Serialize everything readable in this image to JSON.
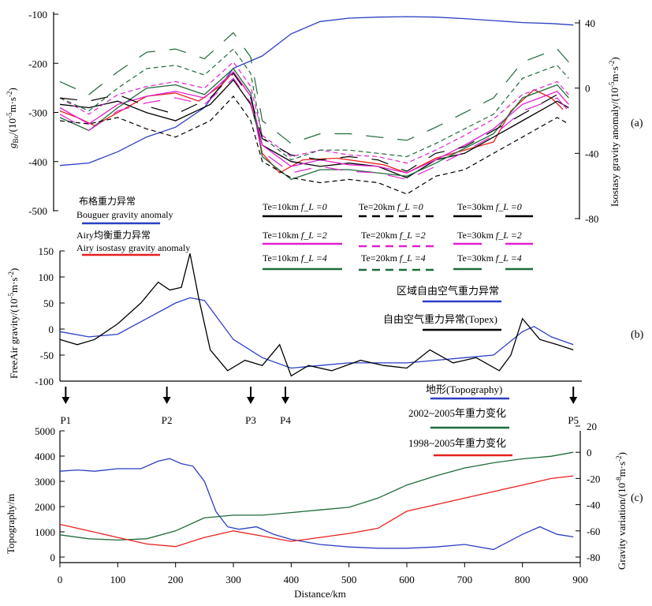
{
  "chart_data": [
    {
      "panel_label": "(a)",
      "type": "line",
      "ylabel_left": "g_Bo/(10^-5 m·s^-2)",
      "ylabel_left_parts": {
        "main": "g",
        "sub": "Bo",
        "unit": "/(10",
        "exp1": "-5",
        "mid": "m·s",
        "exp2": "-2",
        "end": ")"
      },
      "ylabel_right": "Isostasy gravity anomaly/(10^-5 m·s^-2)",
      "ylabel_right_parts": {
        "main": "Isostasy gravity anomaly/(10",
        "exp1": "-5",
        "mid": "m·s",
        "exp2": "-2",
        "end": ")"
      },
      "ylim_left": [
        -500,
        -100
      ],
      "yticks_left": [
        "-100",
        "-200",
        "-300",
        "-400",
        "-500"
      ],
      "ylim_right": [
        -80,
        40
      ],
      "yticks_right": [
        "40",
        "0",
        "-40",
        "-80"
      ],
      "legend": [
        {
          "text_cn": "布格重力异常",
          "text_en": "Bouguer gravity anomaly",
          "color": "#2b3fc4"
        },
        {
          "text_cn": "Airy均衡重力异常",
          "text_en": "Airy isostasy gravity anomaly",
          "color": "#e8201e"
        },
        {
          "text": "Te=10km",
          "fl": "f_L =0",
          "color": "#000000",
          "style": "solid"
        },
        {
          "text": "Te=10km",
          "fl": "f_L =2",
          "color": "#e020d0",
          "style": "solid"
        },
        {
          "text": "Te=10km",
          "fl": "f_L =4",
          "color": "#1f6a3a",
          "style": "solid"
        },
        {
          "text": "Te=20km",
          "fl": "f_L =0",
          "color": "#000000",
          "style": "dashed"
        },
        {
          "text": "Te=20km",
          "fl": "f_L =2",
          "color": "#e020d0",
          "style": "dashed"
        },
        {
          "text": "Te=20km",
          "fl": "f_L =4",
          "color": "#1f6a3a",
          "style": "dashed"
        },
        {
          "text": "Te=30km",
          "fl": "f_L =0",
          "color": "#000000",
          "style": "longdash"
        },
        {
          "text": "Te=30km",
          "fl": "f_L =2",
          "color": "#e020d0",
          "style": "longdash"
        },
        {
          "text": "Te=30km",
          "fl": "f_L =4",
          "color": "#1f6a3a",
          "style": "longdash"
        }
      ],
      "series": [
        {
          "name": "Bouguer gravity anomaly",
          "axis": "left",
          "color": "#2b3fc4",
          "x": [
            0,
            50,
            100,
            150,
            200,
            250,
            300,
            350,
            400,
            450,
            500,
            550,
            600,
            650,
            700,
            750,
            800,
            850,
            888
          ],
          "values": [
            -408,
            -403,
            -380,
            -350,
            -330,
            -290,
            -210,
            -185,
            -140,
            -115,
            -108,
            -106,
            -105,
            -106,
            -109,
            -113,
            -117,
            -119,
            -122
          ]
        },
        {
          "name": "Airy isostasy gravity anomaly",
          "axis": "right",
          "color": "#e8201e",
          "x": [
            0,
            30,
            60,
            100,
            150,
            200,
            240,
            280,
            300,
            330,
            350,
            380,
            420,
            480,
            560,
            600,
            650,
            700,
            750,
            780,
            820,
            850,
            870
          ],
          "values": [
            -14,
            -18,
            -23,
            -15,
            -5,
            -3,
            -8,
            2,
            10,
            -5,
            -40,
            -52,
            -44,
            -43,
            -47,
            -52,
            -43,
            -38,
            -33,
            -14,
            -1,
            -6,
            -13
          ]
        },
        {
          "name": "Te=10km f_L=0",
          "axis": "right",
          "color": "#000000",
          "x": [
            0,
            50,
            100,
            150,
            200,
            260,
            300,
            330,
            350,
            400,
            450,
            500,
            550,
            600,
            650,
            700,
            750,
            800,
            860,
            880
          ],
          "values": [
            -10,
            -12,
            -8,
            -15,
            -20,
            -10,
            5,
            -10,
            -35,
            -45,
            -48,
            -46,
            -48,
            -55,
            -44,
            -40,
            -30,
            -20,
            -8,
            -12
          ]
        },
        {
          "name": "Te=10km f_L=2",
          "axis": "right",
          "color": "#e020d0",
          "x": [
            0,
            50,
            100,
            150,
            200,
            250,
            300,
            330,
            350,
            400,
            450,
            500,
            550,
            600,
            650,
            700,
            750,
            800,
            860,
            880
          ],
          "values": [
            -12,
            -22,
            -10,
            -5,
            -2,
            -6,
            10,
            -5,
            -35,
            -48,
            -44,
            -47,
            -48,
            -52,
            -44,
            -35,
            -25,
            -10,
            -2,
            -10
          ]
        },
        {
          "name": "Te=10km f_L=4",
          "axis": "right",
          "color": "#1f6a3a",
          "x": [
            0,
            50,
            100,
            150,
            200,
            250,
            300,
            330,
            350,
            400,
            450,
            500,
            550,
            600,
            650,
            700,
            750,
            800,
            860,
            880
          ],
          "values": [
            -18,
            -26,
            -12,
            0,
            2,
            -4,
            12,
            -3,
            -42,
            -56,
            -50,
            -50,
            -52,
            -54,
            -46,
            -37,
            -28,
            -6,
            2,
            -6
          ]
        }
      ]
    },
    {
      "panel_label": "(b)",
      "type": "line",
      "ylabel": "FreeAir gravity/(10^-5 m·s^-2)",
      "ylabel_parts": {
        "main": "FreeAir gravity/(10",
        "exp1": "-5",
        "mid": "m·s",
        "exp2": "-2",
        "end": ")"
      },
      "ylim": [
        -100,
        150
      ],
      "yticks": [
        "150",
        "100",
        "50",
        "0",
        "-50",
        "-100"
      ],
      "legend": [
        {
          "text": "区域自由空气重力异常",
          "color": "#2b3fc4"
        },
        {
          "text": "自由空气重力异常(Topex)",
          "color": "#000000"
        }
      ],
      "series": [
        {
          "name": "区域自由空气重力异常",
          "color": "#2b3fc4",
          "x": [
            0,
            50,
            100,
            150,
            200,
            225,
            250,
            300,
            350,
            400,
            450,
            500,
            550,
            600,
            650,
            700,
            750,
            800,
            820,
            850,
            888
          ],
          "values": [
            -5,
            -15,
            -10,
            20,
            50,
            60,
            55,
            -20,
            -55,
            -75,
            -70,
            -65,
            -65,
            -65,
            -60,
            -55,
            -50,
            -5,
            5,
            -15,
            -30
          ]
        },
        {
          "name": "自由空气重力异常(Topex)",
          "color": "#000000",
          "x": [
            0,
            30,
            60,
            100,
            140,
            170,
            190,
            210,
            225,
            240,
            260,
            290,
            320,
            350,
            380,
            400,
            430,
            470,
            520,
            560,
            600,
            640,
            680,
            720,
            760,
            780,
            800,
            830,
            860,
            888
          ],
          "values": [
            -20,
            -30,
            -20,
            10,
            50,
            90,
            75,
            80,
            145,
            60,
            -40,
            -80,
            -60,
            -70,
            -30,
            -90,
            -70,
            -80,
            -60,
            -70,
            -75,
            -40,
            -65,
            -55,
            -80,
            -50,
            20,
            -20,
            -30,
            -40
          ]
        }
      ],
      "markers": [
        "P1",
        "P2",
        "P3",
        "P4",
        "P5"
      ]
    },
    {
      "panel_label": "(c)",
      "type": "line",
      "xlabel": "Distance/km",
      "xlim": [
        0,
        900
      ],
      "xticks": [
        "0",
        "100",
        "200",
        "300",
        "400",
        "500",
        "600",
        "700",
        "800",
        "900"
      ],
      "ylabel_left": "Topography/m",
      "ylim_left": [
        0,
        5000
      ],
      "yticks_left": [
        "5000",
        "4000",
        "3000",
        "2000",
        "1000",
        "0"
      ],
      "ylabel_right": "Gravity variation/(10^-8 m·s^-2)",
      "ylabel_right_parts": {
        "main": "Gravity variation/(10",
        "exp1": "-8",
        "mid": "m·s",
        "exp2": "-2",
        "end": ")"
      },
      "ylim_right": [
        -80,
        20
      ],
      "yticks_right": [
        "20",
        "0",
        "-20",
        "-40",
        "-60",
        "-80"
      ],
      "legend": [
        {
          "text": "地形(Topography)",
          "color": "#2b3fc4"
        },
        {
          "text": "2002~2005年重力变化",
          "color": "#1f6a3a"
        },
        {
          "text": "1998~2005年重力变化",
          "color": "#e8201e"
        }
      ],
      "series": [
        {
          "name": "地形(Topography)",
          "axis": "left",
          "color": "#2b3fc4",
          "x": [
            0,
            30,
            60,
            100,
            140,
            170,
            190,
            210,
            230,
            250,
            270,
            290,
            310,
            340,
            370,
            400,
            450,
            500,
            550,
            600,
            650,
            700,
            750,
            800,
            830,
            860,
            888
          ],
          "values": [
            3400,
            3450,
            3400,
            3500,
            3500,
            3800,
            3900,
            3700,
            3600,
            3000,
            1800,
            1200,
            1100,
            1200,
            900,
            700,
            500,
            400,
            350,
            350,
            400,
            500,
            300,
            900,
            1200,
            900,
            800
          ]
        },
        {
          "name": "2002~2005年重力变化",
          "axis": "right",
          "color": "#1f6a3a",
          "x": [
            0,
            50,
            100,
            150,
            200,
            250,
            300,
            350,
            400,
            450,
            500,
            550,
            600,
            650,
            700,
            750,
            800,
            850,
            888
          ],
          "values": [
            -63,
            -66,
            -67,
            -66,
            -60,
            -50,
            -48,
            -48,
            -46,
            -44,
            -42,
            -35,
            -25,
            -18,
            -12,
            -8,
            -5,
            -3,
            0
          ]
        },
        {
          "name": "1998~2005年重力变化",
          "axis": "right",
          "color": "#e8201e",
          "x": [
            0,
            50,
            100,
            150,
            200,
            250,
            300,
            350,
            400,
            450,
            500,
            550,
            600,
            650,
            700,
            750,
            800,
            850,
            888
          ],
          "values": [
            -55,
            -60,
            -65,
            -70,
            -72,
            -65,
            -60,
            -64,
            -68,
            -65,
            -62,
            -58,
            -45,
            -40,
            -35,
            -30,
            -25,
            -20,
            -18
          ]
        }
      ]
    }
  ]
}
